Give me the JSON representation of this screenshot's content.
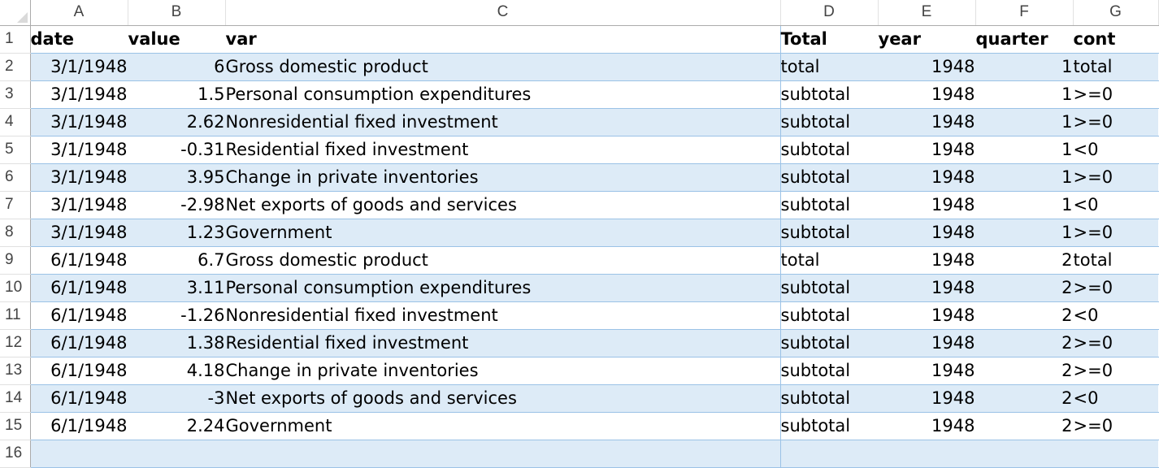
{
  "sheet": {
    "columns": [
      "A",
      "B",
      "C",
      "D",
      "E",
      "F",
      "G"
    ],
    "header_row_number": "1",
    "header": [
      "date",
      "value",
      "var",
      "Total",
      "year",
      "quarter",
      "cont"
    ],
    "rows": [
      {
        "num": "2",
        "cells": [
          "3/1/1948",
          "6",
          "Gross domestic product",
          "total",
          "1948",
          "1",
          "total"
        ]
      },
      {
        "num": "3",
        "cells": [
          "3/1/1948",
          "1.5",
          "Personal consumption expenditures",
          "subtotal",
          "1948",
          "1",
          ">=0"
        ]
      },
      {
        "num": "4",
        "cells": [
          "3/1/1948",
          "2.62",
          "Nonresidential fixed investment",
          "subtotal",
          "1948",
          "1",
          ">=0"
        ]
      },
      {
        "num": "5",
        "cells": [
          "3/1/1948",
          "-0.31",
          "Residential fixed investment",
          "subtotal",
          "1948",
          "1",
          "<0"
        ]
      },
      {
        "num": "6",
        "cells": [
          "3/1/1948",
          "3.95",
          "Change in private inventories",
          "subtotal",
          "1948",
          "1",
          ">=0"
        ]
      },
      {
        "num": "7",
        "cells": [
          "3/1/1948",
          "-2.98",
          "Net exports of goods and services",
          "subtotal",
          "1948",
          "1",
          "<0"
        ]
      },
      {
        "num": "8",
        "cells": [
          "3/1/1948",
          "1.23",
          "Government",
          "subtotal",
          "1948",
          "1",
          ">=0"
        ]
      },
      {
        "num": "9",
        "cells": [
          "6/1/1948",
          "6.7",
          "Gross domestic product",
          "total",
          "1948",
          "2",
          "total"
        ]
      },
      {
        "num": "10",
        "cells": [
          "6/1/1948",
          "3.11",
          "Personal consumption expenditures",
          "subtotal",
          "1948",
          "2",
          ">=0"
        ]
      },
      {
        "num": "11",
        "cells": [
          "6/1/1948",
          "-1.26",
          "Nonresidential fixed investment",
          "subtotal",
          "1948",
          "2",
          "<0"
        ]
      },
      {
        "num": "12",
        "cells": [
          "6/1/1948",
          "1.38",
          "Residential fixed investment",
          "subtotal",
          "1948",
          "2",
          ">=0"
        ]
      },
      {
        "num": "13",
        "cells": [
          "6/1/1948",
          "4.18",
          "Change in private inventories",
          "subtotal",
          "1948",
          "2",
          ">=0"
        ]
      },
      {
        "num": "14",
        "cells": [
          "6/1/1948",
          "-3",
          "Net exports of goods and services",
          "subtotal",
          "1948",
          "2",
          "<0"
        ]
      },
      {
        "num": "15",
        "cells": [
          "6/1/1948",
          "2.24",
          "Government",
          "subtotal",
          "1948",
          "2",
          ">=0"
        ]
      }
    ],
    "partial_row": {
      "num": "16",
      "cells": [
        "",
        "",
        "",
        "",
        "",
        "",
        ""
      ]
    },
    "colors": {
      "band_fill": "#ddebf7",
      "table_border": "#9bc2e6",
      "header_text": "#444444"
    }
  }
}
